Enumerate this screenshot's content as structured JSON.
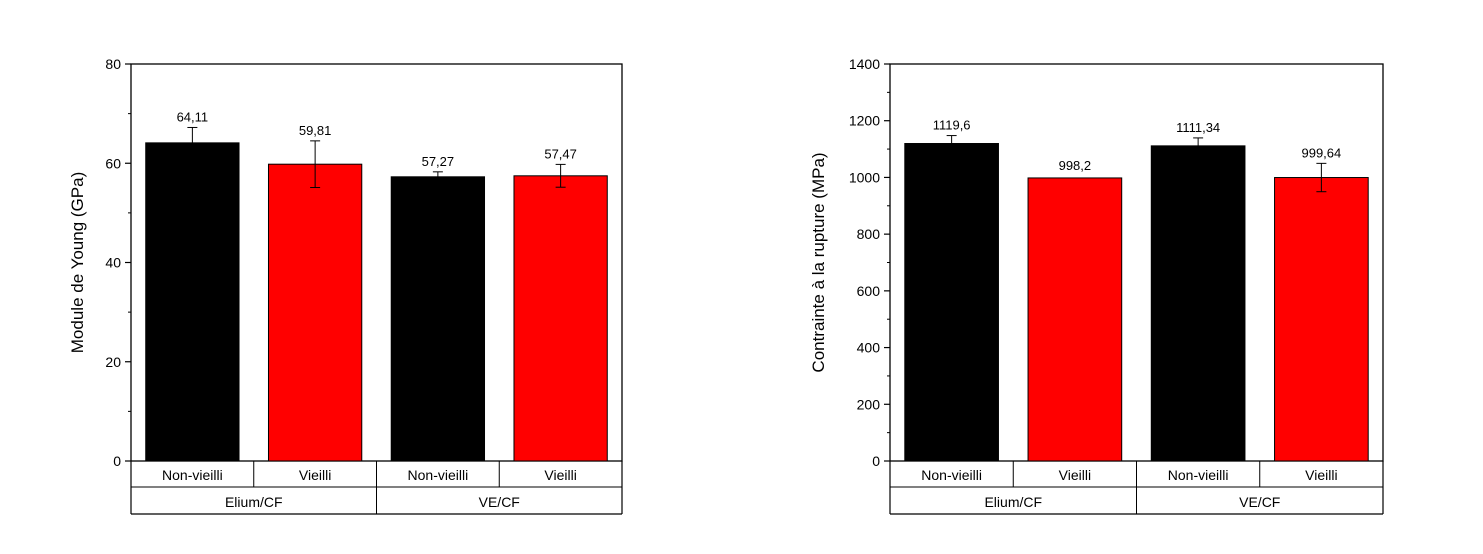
{
  "chart_data": [
    {
      "type": "bar",
      "ylabel": "Module de Young (GPa)",
      "ylim": [
        0,
        80
      ],
      "yticks": [
        0,
        20,
        40,
        60,
        80
      ],
      "categories": [
        "Non-vieilli",
        "Vieilli",
        "Non-vieilli",
        "Vieilli"
      ],
      "groups": [
        "Elium/CF",
        "VE/CF"
      ],
      "values": [
        64.11,
        59.81,
        57.27,
        57.47
      ],
      "errors": [
        3.1,
        4.7,
        1.0,
        2.3
      ],
      "data_labels": [
        "64,11",
        "59,81",
        "57,27",
        "57,47"
      ],
      "colors": [
        "#000000",
        "#ff0000",
        "#000000",
        "#ff0000"
      ],
      "grid": false
    },
    {
      "type": "bar",
      "ylabel": "Contrainte à la rupture (MPa)",
      "ylim": [
        0,
        1400
      ],
      "yticks": [
        0,
        200,
        400,
        600,
        800,
        1000,
        1200,
        1400
      ],
      "categories": [
        "Non-vieilli",
        "Vieilli",
        "Non-vieilli",
        "Vieilli"
      ],
      "groups": [
        "Elium/CF",
        "VE/CF"
      ],
      "values": [
        1119.6,
        998.2,
        1111.34,
        999.64
      ],
      "errors": [
        28,
        0,
        28,
        50
      ],
      "data_labels": [
        "1119,6",
        "998,2",
        "1111,34",
        "999,64"
      ],
      "colors": [
        "#000000",
        "#ff0000",
        "#000000",
        "#ff0000"
      ],
      "grid": false
    }
  ]
}
